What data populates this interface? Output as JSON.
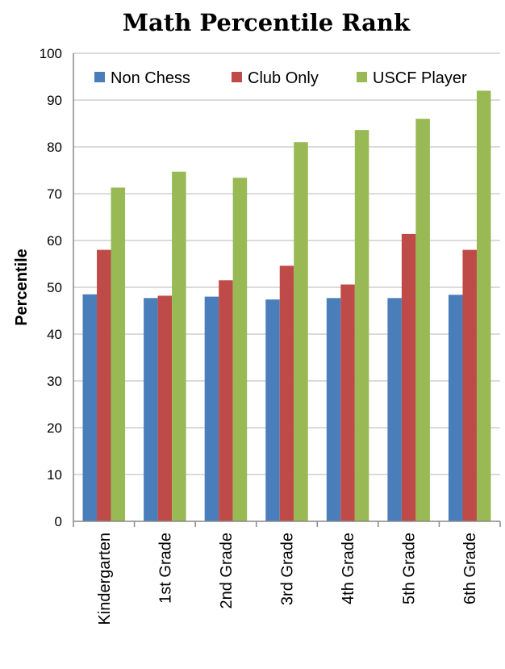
{
  "chart_data": {
    "type": "bar",
    "title": "Math Percentile Rank",
    "xlabel": "",
    "ylabel": "Percentile",
    "ylim": [
      0,
      100
    ],
    "yticks": [
      0,
      10,
      20,
      30,
      40,
      50,
      60,
      70,
      80,
      90,
      100
    ],
    "categories": [
      "Kindergarten",
      "1st Grade",
      "2nd Grade",
      "3rd Grade",
      "4th Grade",
      "5th Grade",
      "6th Grade"
    ],
    "series": [
      {
        "name": "Non Chess",
        "color": "#4a7ebb",
        "values": [
          48.5,
          47.7,
          48.0,
          47.4,
          47.7,
          47.7,
          48.4
        ]
      },
      {
        "name": "Club Only",
        "color": "#be4b48",
        "values": [
          58.0,
          48.2,
          51.5,
          54.6,
          50.6,
          61.4,
          58.0
        ]
      },
      {
        "name": "USCF Player",
        "color": "#98b954",
        "values": [
          71.3,
          74.7,
          73.4,
          81.0,
          83.6,
          86.0,
          92.0
        ]
      }
    ],
    "grid": true,
    "legend_position": "top"
  }
}
